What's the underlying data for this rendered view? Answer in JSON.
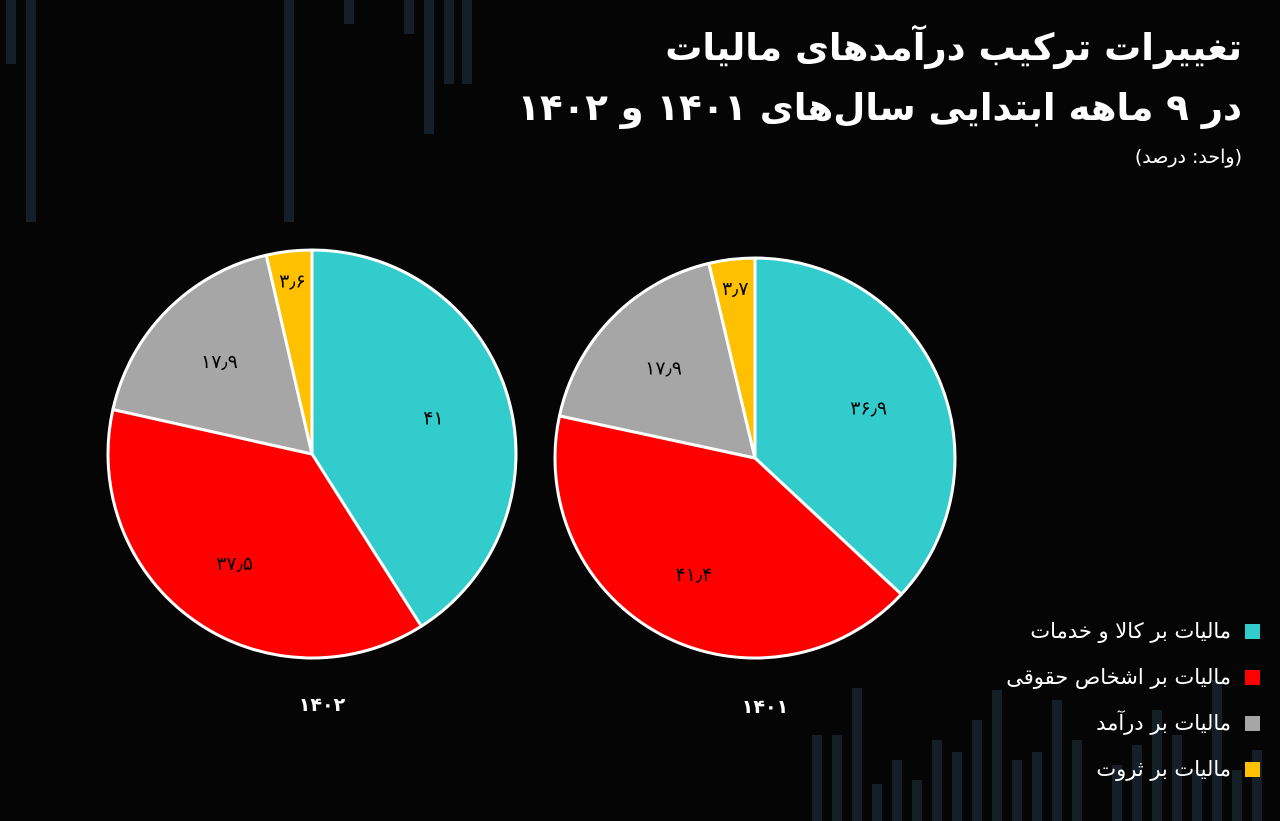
{
  "title_line1": "تغییرات ترکیب درآمدهای مالیات",
  "title_line2": "در ۹ ماهه ابتدایی سال‌های ۱۴۰۱ و ۱۴۰۲",
  "subtitle": "(واحد: درصد)",
  "colors": {
    "background": "#050505",
    "goods_services": "#33CCCC",
    "legal_persons": "#FF0000",
    "income": "#A6A6A6",
    "wealth": "#FFC000",
    "bg_bars": "#16222C"
  },
  "legend": [
    {
      "label": "مالیات بر کالا و خدمات",
      "color": "#33CCCC"
    },
    {
      "label": "مالیات بر اشخاص حقوقی",
      "color": "#FF0000"
    },
    {
      "label": "مالیات بر درآمد",
      "color": "#A6A6A6"
    },
    {
      "label": "مالیات بر ثروت",
      "color": "#FFC000"
    }
  ],
  "chart_data": [
    {
      "type": "pie",
      "title": "۱۴۰۲",
      "categories": [
        "مالیات بر کالا و خدمات",
        "مالیات بر اشخاص حقوقی",
        "مالیات بر درآمد",
        "مالیات بر ثروت"
      ],
      "values": [
        41,
        37.5,
        17.9,
        3.6
      ],
      "value_labels": [
        "۴۱",
        "۳۷٫۵",
        "۱۷٫۹",
        "۳٫۶"
      ],
      "colors": [
        "#33CCCC",
        "#FF0000",
        "#A6A6A6",
        "#FFC000"
      ]
    },
    {
      "type": "pie",
      "title": "۱۴۰۱",
      "categories": [
        "مالیات بر کالا و خدمات",
        "مالیات بر اشخاص حقوقی",
        "مالیات بر درآمد",
        "مالیات بر ثروت"
      ],
      "values": [
        36.9,
        41.4,
        17.9,
        3.7
      ],
      "value_labels": [
        "۳۶٫۹",
        "۴۱٫۴",
        "۱۷٫۹",
        "۳٫۷"
      ],
      "colors": [
        "#33CCCC",
        "#FF0000",
        "#A6A6A6",
        "#FFC000"
      ]
    }
  ]
}
